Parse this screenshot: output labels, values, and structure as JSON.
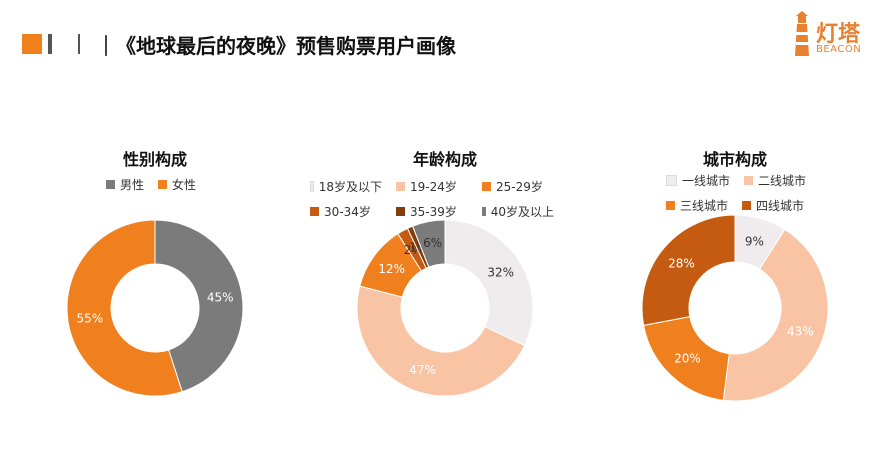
{
  "header": {
    "title": "｜《地球最后的夜晚》预售购票用户画像",
    "accent_color": "#F07F1E",
    "bar_color": "#555555"
  },
  "logo": {
    "name_cn": "灯塔",
    "name_en": "BEACON",
    "color": "#E8812F"
  },
  "chart_data": [
    {
      "type": "donut",
      "title": "性别构成",
      "legend_position": "top",
      "categories": [
        "男性",
        "女性"
      ],
      "values": [
        45,
        55
      ],
      "labels": [
        "45%",
        "55%"
      ],
      "colors": [
        "#7B7B7B",
        "#F07F1E"
      ],
      "label_colors": [
        "#ffffff",
        "#ffffff"
      ]
    },
    {
      "type": "donut",
      "title": "年龄构成",
      "legend_position": "top",
      "categories": [
        "18岁及以下",
        "19-24岁",
        "25-29岁",
        "30-34岁",
        "35-39岁",
        "40岁及以上"
      ],
      "values": [
        32,
        47,
        12,
        2,
        1,
        6
      ],
      "labels": [
        "32%",
        "47%",
        "12%",
        "2%",
        "1%",
        "6%"
      ],
      "colors": [
        "#F0ECEE",
        "#F8C4A4",
        "#F07F1E",
        "#C55A11",
        "#843C0C",
        "#7B7B7B"
      ],
      "label_colors": [
        "#333333",
        "#ffffff",
        "#ffffff",
        "#333333",
        "#333333",
        "#333333"
      ]
    },
    {
      "type": "donut",
      "title": "城市构成",
      "legend_position": "top",
      "categories": [
        "一线城市",
        "二线城市",
        "三线城市",
        "四线城市"
      ],
      "values": [
        9,
        43,
        20,
        28
      ],
      "labels": [
        "9%",
        "43%",
        "20%",
        "28%"
      ],
      "colors": [
        "#F0ECEE",
        "#F8C4A4",
        "#F07F1E",
        "#C55A11"
      ],
      "label_colors": [
        "#333333",
        "#ffffff",
        "#ffffff",
        "#ffffff"
      ]
    }
  ]
}
